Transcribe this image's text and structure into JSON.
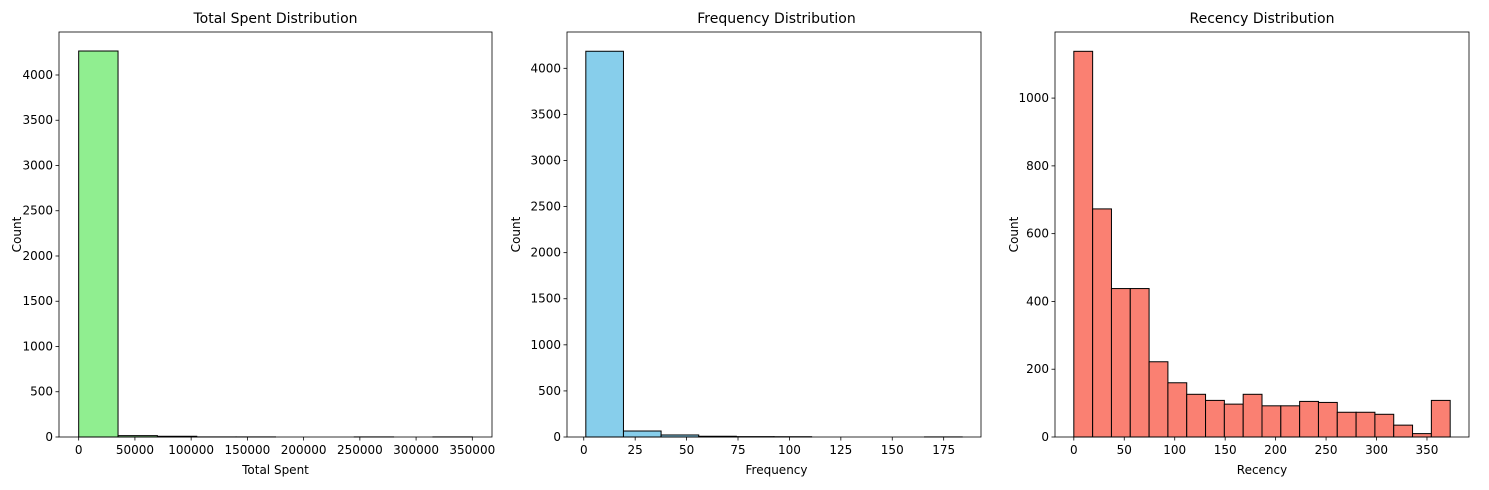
{
  "chart_data": [
    {
      "type": "bar",
      "title": "Total Spent Distribution",
      "xlabel": "Total Spent",
      "ylabel": "Count",
      "color": "#90ee90",
      "bin_edges": [
        0,
        35000,
        70000,
        105000,
        140000,
        175000,
        210000,
        245000,
        280000,
        315000,
        350000
      ],
      "values": [
        4265,
        15,
        8,
        1,
        1,
        0,
        0,
        1,
        0,
        1
      ],
      "xlim": [
        -17500,
        367500
      ],
      "ylim": [
        0,
        4475
      ],
      "xticks": [
        0,
        50000,
        100000,
        150000,
        200000,
        250000,
        300000,
        350000
      ],
      "xtick_labels": [
        "0",
        "50000",
        "100000",
        "150000",
        "200000",
        "250000",
        "300000",
        "350000"
      ],
      "yticks": [
        0,
        500,
        1000,
        1500,
        2000,
        2500,
        3000,
        3500,
        4000
      ],
      "ytick_labels": [
        "0",
        "500",
        "1000",
        "1500",
        "2000",
        "2500",
        "3000",
        "3500",
        "4000"
      ],
      "grid": false
    },
    {
      "type": "bar",
      "title": "Frequency Distribution",
      "xlabel": "Frequency",
      "ylabel": "Count",
      "color": "#87ceeb",
      "bin_edges": [
        1,
        19.3,
        37.6,
        55.9,
        74.2,
        92.5,
        110.8,
        129.1,
        147.4,
        165.7,
        184
      ],
      "values": [
        4185,
        65,
        22,
        8,
        4,
        3,
        0,
        0,
        0,
        1
      ],
      "xlim": [
        -8.15,
        193.15
      ],
      "ylim": [
        0,
        4394
      ],
      "xticks": [
        0,
        25,
        50,
        75,
        100,
        125,
        150,
        175
      ],
      "xtick_labels": [
        "0",
        "25",
        "50",
        "75",
        "100",
        "125",
        "150",
        "175"
      ],
      "yticks": [
        0,
        500,
        1000,
        1500,
        2000,
        2500,
        3000,
        3500,
        4000
      ],
      "ytick_labels": [
        "0",
        "500",
        "1000",
        "1500",
        "2000",
        "2500",
        "3000",
        "3500",
        "4000"
      ],
      "grid": false
    },
    {
      "type": "bar",
      "title": "Recency Distribution",
      "xlabel": "Recency",
      "ylabel": "Count",
      "color": "#fa8072",
      "bin_edges": [
        0,
        18.65,
        37.3,
        55.95,
        74.6,
        93.25,
        111.9,
        130.55,
        149.2,
        167.85,
        186.5,
        205.15,
        223.8,
        242.45,
        261.1,
        279.75,
        298.4,
        317.05,
        335.7,
        354.35,
        373
      ],
      "values": [
        1138,
        673,
        438,
        438,
        222,
        160,
        126,
        108,
        97,
        126,
        92,
        92,
        105,
        102,
        73,
        73,
        67,
        35,
        10,
        108
      ],
      "xlim": [
        -18.65,
        391.65
      ],
      "ylim": [
        0,
        1195
      ],
      "xticks": [
        0,
        50,
        100,
        150,
        200,
        250,
        300,
        350
      ],
      "xtick_labels": [
        "0",
        "50",
        "100",
        "150",
        "200",
        "250",
        "300",
        "350"
      ],
      "yticks": [
        0,
        200,
        400,
        600,
        800,
        1000
      ],
      "ytick_labels": [
        "0",
        "200",
        "400",
        "600",
        "800",
        "1000"
      ],
      "grid": false
    }
  ]
}
